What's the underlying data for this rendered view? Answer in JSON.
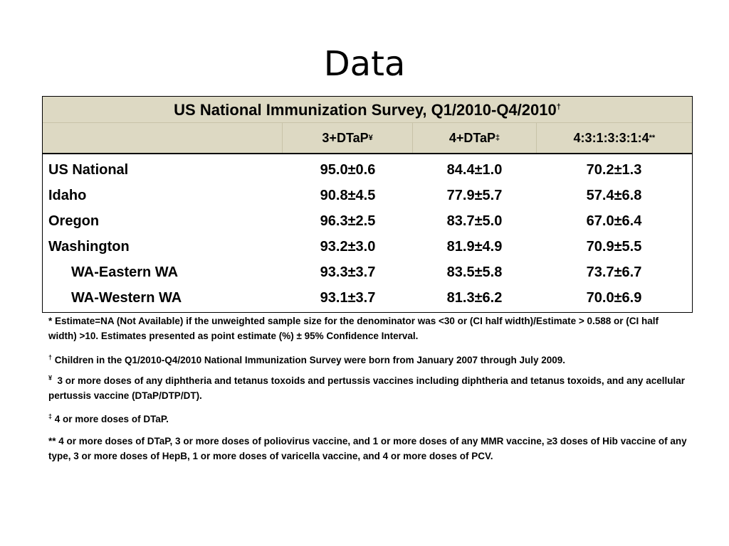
{
  "title": "Data",
  "table": {
    "caption": "US National Immunization Survey, Q1/2010-Q4/2010",
    "caption_mark": "†",
    "columns": [
      {
        "label": "3+DTaP",
        "mark": "¥"
      },
      {
        "label": "4+DTaP",
        "mark": "‡"
      },
      {
        "label": "4:3:1:3:3:1:4",
        "mark": "**"
      }
    ],
    "rows": [
      {
        "name": "US National",
        "values": [
          "95.0±0.6",
          "84.4±1.0",
          "70.2±1.3"
        ]
      },
      {
        "name": "Idaho",
        "values": [
          "90.8±4.5",
          "77.9±5.7",
          "57.4±6.8"
        ]
      },
      {
        "name": "Oregon",
        "values": [
          "96.3±2.5",
          "83.7±5.0",
          "67.0±6.4"
        ]
      },
      {
        "name": "Washington",
        "values": [
          "93.2±3.0",
          "81.9±4.9",
          "70.9±5.5"
        ]
      },
      {
        "name": "WA-Eastern WA",
        "values": [
          "93.3±3.7",
          "83.5±5.8",
          "73.7±6.7"
        ]
      },
      {
        "name": "WA-Western WA",
        "values": [
          "93.1±3.7",
          "81.3±6.2",
          "70.0±6.9"
        ]
      }
    ]
  },
  "footnotes": {
    "estimate": "* Estimate=NA (Not Available) if the unweighted sample size for the denominator was <30 or (CI half width)/Estimate > 0.588 or (CI half width) >10. Estimates presented as point estimate (%) ± 95% Confidence Interval.",
    "dagger_mark": "†",
    "dagger": "Children in the Q1/2010-Q4/2010 National Immunization Survey were born from January 2007 through July 2009.",
    "yen_mark": "¥",
    "yen": "3 or more doses of any diphtheria and tetanus toxoids and pertussis vaccines including diphtheria and tetanus toxoids, and any acellular pertussis vaccine (DTaP/DTP/DT).",
    "ddagger_mark": "‡",
    "ddagger": "4 or more doses of DTaP.",
    "double_star": "** 4 or more doses of DTaP, 3 or more doses of poliovirus vaccine, and 1 or more doses of any MMR vaccine, ≥3 doses of Hib vaccine of any type, 3 or more doses of HepB, 1 or more doses of varicella vaccine, and 4 or more doses of PCV."
  }
}
